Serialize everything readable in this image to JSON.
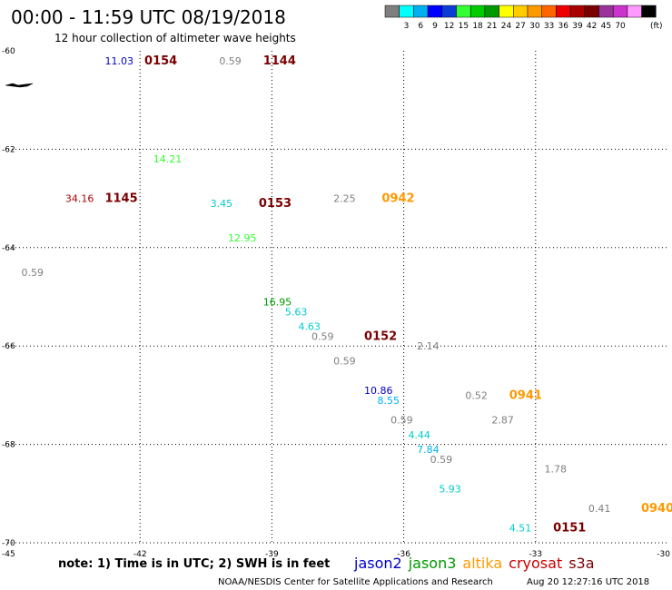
{
  "header": {
    "title": "00:00 - 11:59 UTC 08/19/2018",
    "subtitle": "12 hour collection of altimeter wave heights"
  },
  "color_scale": {
    "colors": [
      "#7f7f7f",
      "#00ffff",
      "#00b0f0",
      "#0000ff",
      "#0b3cd6",
      "#33ff33",
      "#00cc00",
      "#009900",
      "#ffff00",
      "#ffcc00",
      "#ff9900",
      "#ff6600",
      "#ee0000",
      "#aa0000",
      "#7a0000",
      "#993399",
      "#cc33cc",
      "#ff99ff",
      "#000000"
    ],
    "labels": [
      "3",
      "6",
      "9",
      "12",
      "15",
      "18",
      "21",
      "24",
      "27",
      "30",
      "33",
      "36",
      "39",
      "42",
      "45",
      "70"
    ],
    "unit": "(ft)"
  },
  "footer": {
    "note": "note: 1) Time is in UTC; 2) SWH is in feet",
    "credit": "NOAA/NESDIS Center for Satellite Applications and Research",
    "timestamp": "Aug 20 12:27:16 UTC 2018"
  },
  "legend": [
    {
      "name": "jason2",
      "color": "#0000cc"
    },
    {
      "name": "jason3",
      "color": "#009900"
    },
    {
      "name": "altika",
      "color": "#ff9900"
    },
    {
      "name": "cryosat",
      "color": "#cc0000"
    },
    {
      "name": "s3a",
      "color": "#7a0000"
    }
  ],
  "chart_data": {
    "type": "scatter",
    "title": "00:00 - 11:59 UTC 08/19/2018",
    "subtitle": "12 hour collection of altimeter wave heights",
    "xlim": [
      -45,
      -30
    ],
    "ylim": [
      -70,
      -60
    ],
    "xticks": [
      -45,
      -42,
      -39,
      -36,
      -33,
      -30
    ],
    "xtick_labels": [
      "-45",
      "-42",
      "-39",
      "-36",
      "-33",
      "-30"
    ],
    "yticks": [
      -60,
      -62,
      -64,
      -66,
      -68,
      -70
    ],
    "ytick_labels": [
      "-60",
      "-62",
      "-64",
      "-66",
      "-68",
      "-70"
    ],
    "grid": true,
    "wave_heights": [
      {
        "x": -42.8,
        "y": -60.2,
        "label": "11.03",
        "color": "#0000cc"
      },
      {
        "x": -40.2,
        "y": -60.2,
        "label": "0.59",
        "color": "#7f7f7f"
      },
      {
        "x": -41.7,
        "y": -62.2,
        "label": "14.21",
        "color": "#33ff33"
      },
      {
        "x": -43.7,
        "y": -63.0,
        "label": "34.16",
        "color": "#aa0000"
      },
      {
        "x": -40.4,
        "y": -63.1,
        "label": "3.45",
        "color": "#00cccc"
      },
      {
        "x": -37.6,
        "y": -63.0,
        "label": "2.25",
        "color": "#7f7f7f"
      },
      {
        "x": -40.0,
        "y": -63.8,
        "label": "12.95",
        "color": "#33ff33"
      },
      {
        "x": -44.7,
        "y": -64.5,
        "label": "0.59",
        "color": "#7f7f7f"
      },
      {
        "x": -39.2,
        "y": -65.1,
        "label": "16.95",
        "color": "#009900"
      },
      {
        "x": -38.7,
        "y": -65.3,
        "label": "5.63",
        "color": "#00cccc"
      },
      {
        "x": -38.4,
        "y": -65.6,
        "label": "4.63",
        "color": "#00cccc"
      },
      {
        "x": -38.1,
        "y": -65.8,
        "label": "0.59",
        "color": "#7f7f7f"
      },
      {
        "x": -35.7,
        "y": -66.0,
        "label": "2.14",
        "color": "#7f7f7f"
      },
      {
        "x": -37.6,
        "y": -66.3,
        "label": "0.59",
        "color": "#7f7f7f"
      },
      {
        "x": -36.9,
        "y": -66.9,
        "label": "10.86",
        "color": "#0000cc"
      },
      {
        "x": -36.6,
        "y": -67.1,
        "label": "8.55",
        "color": "#00b0f0"
      },
      {
        "x": -34.6,
        "y": -67.0,
        "label": "0.52",
        "color": "#7f7f7f"
      },
      {
        "x": -36.3,
        "y": -67.5,
        "label": "0.59",
        "color": "#7f7f7f"
      },
      {
        "x": -34.0,
        "y": -67.5,
        "label": "2.87",
        "color": "#7f7f7f"
      },
      {
        "x": -35.9,
        "y": -67.8,
        "label": "4.44",
        "color": "#00cccc"
      },
      {
        "x": -35.7,
        "y": -68.1,
        "label": "7.84",
        "color": "#00b0f0"
      },
      {
        "x": -35.4,
        "y": -68.3,
        "label": "0.59",
        "color": "#7f7f7f"
      },
      {
        "x": -32.8,
        "y": -68.5,
        "label": "1.78",
        "color": "#7f7f7f"
      },
      {
        "x": -35.2,
        "y": -68.9,
        "label": "5.93",
        "color": "#00cccc"
      },
      {
        "x": -31.8,
        "y": -69.3,
        "label": "0.41",
        "color": "#7f7f7f"
      },
      {
        "x": -33.6,
        "y": -69.7,
        "label": "4.51",
        "color": "#00cccc"
      }
    ],
    "pass_times": [
      {
        "x": -41.9,
        "y": -60.2,
        "label": "0154",
        "color": "#7a0000"
      },
      {
        "x": -39.2,
        "y": -60.2,
        "label": "1144",
        "color": "#7a0000"
      },
      {
        "x": -42.8,
        "y": -63.0,
        "label": "1145",
        "color": "#7a0000"
      },
      {
        "x": -39.3,
        "y": -63.1,
        "label": "0153",
        "color": "#7a0000"
      },
      {
        "x": -36.5,
        "y": -63.0,
        "label": "0942",
        "color": "#ff9900"
      },
      {
        "x": -36.9,
        "y": -65.8,
        "label": "0152",
        "color": "#7a0000"
      },
      {
        "x": -33.6,
        "y": -67.0,
        "label": "0941",
        "color": "#ff9900"
      },
      {
        "x": -30.6,
        "y": -69.3,
        "label": "0940",
        "color": "#ff9900"
      },
      {
        "x": -32.6,
        "y": -69.7,
        "label": "0151",
        "color": "#7a0000"
      }
    ]
  }
}
